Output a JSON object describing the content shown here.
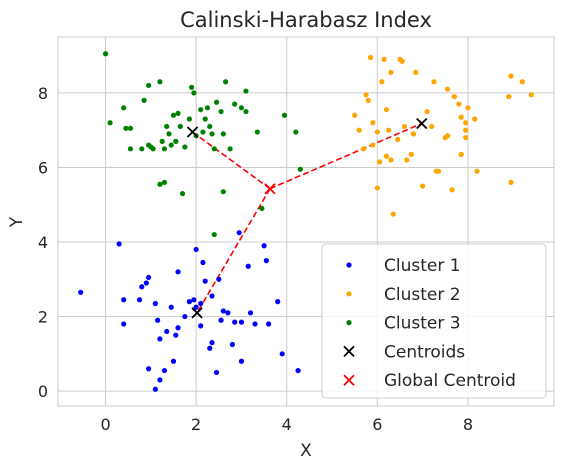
{
  "chart_data": {
    "type": "scatter",
    "title": "Calinski-Harabasz Index",
    "xlabel": "X",
    "ylabel": "Y",
    "xlim": [
      -1.05,
      9.9
    ],
    "ylim": [
      -0.4,
      9.5
    ],
    "xticks": [
      0,
      2,
      4,
      6,
      8
    ],
    "yticks": [
      0,
      2,
      4,
      6,
      8
    ],
    "grid": true,
    "legend_position": "lower-right",
    "series": [
      {
        "name": "Cluster 1",
        "color": "#0000ff",
        "marker": "dot",
        "points": [
          [
            -0.55,
            2.65
          ],
          [
            0.3,
            3.95
          ],
          [
            0.4,
            2.45
          ],
          [
            0.4,
            1.8
          ],
          [
            0.75,
            2.45
          ],
          [
            0.8,
            2.8
          ],
          [
            0.9,
            2.9
          ],
          [
            0.95,
            3.05
          ],
          [
            0.95,
            0.6
          ],
          [
            1.1,
            2.35
          ],
          [
            1.15,
            1.9
          ],
          [
            1.1,
            0.05
          ],
          [
            1.2,
            1.4
          ],
          [
            1.2,
            0.3
          ],
          [
            1.35,
            1.6
          ],
          [
            1.45,
            2.25
          ],
          [
            1.5,
            0.8
          ],
          [
            1.55,
            1.5
          ],
          [
            1.6,
            1.7
          ],
          [
            1.6,
            3.2
          ],
          [
            1.75,
            2.0
          ],
          [
            1.85,
            2.4
          ],
          [
            1.95,
            2.45
          ],
          [
            2.0,
            2.25
          ],
          [
            2.0,
            3.8
          ],
          [
            2.1,
            2.35
          ],
          [
            2.1,
            1.75
          ],
          [
            2.15,
            3.45
          ],
          [
            2.2,
            2.95
          ],
          [
            2.3,
            1.15
          ],
          [
            2.35,
            1.3
          ],
          [
            2.35,
            2.55
          ],
          [
            2.45,
            0.5
          ],
          [
            2.5,
            3.0
          ],
          [
            2.55,
            1.9
          ],
          [
            2.7,
            2.1
          ],
          [
            2.8,
            1.25
          ],
          [
            2.85,
            1.85
          ],
          [
            3.0,
            0.8
          ],
          [
            3.0,
            1.85
          ],
          [
            3.15,
            3.35
          ],
          [
            3.3,
            1.8
          ],
          [
            3.5,
            3.9
          ],
          [
            3.55,
            3.5
          ],
          [
            3.6,
            1.8
          ],
          [
            3.8,
            2.4
          ],
          [
            3.9,
            1.0
          ],
          [
            4.25,
            0.55
          ],
          [
            2.95,
            4.25
          ],
          [
            3.2,
            2.1
          ],
          [
            2.6,
            2.15
          ],
          [
            1.3,
            0.55
          ]
        ]
      },
      {
        "name": "Cluster 2",
        "color": "#ffa500",
        "marker": "dot",
        "points": [
          [
            5.5,
            7.4
          ],
          [
            5.6,
            7.0
          ],
          [
            5.7,
            6.5
          ],
          [
            5.75,
            7.95
          ],
          [
            5.8,
            7.8
          ],
          [
            5.85,
            8.95
          ],
          [
            5.9,
            7.2
          ],
          [
            5.9,
            6.6
          ],
          [
            6.0,
            5.45
          ],
          [
            6.0,
            6.95
          ],
          [
            6.1,
            8.3
          ],
          [
            6.15,
            8.9
          ],
          [
            6.2,
            7.55
          ],
          [
            6.2,
            6.3
          ],
          [
            6.25,
            7.0
          ],
          [
            6.3,
            6.2
          ],
          [
            6.3,
            8.55
          ],
          [
            6.35,
            4.75
          ],
          [
            6.45,
            6.75
          ],
          [
            6.5,
            8.9
          ],
          [
            6.55,
            8.85
          ],
          [
            6.6,
            7.1
          ],
          [
            6.65,
            6.2
          ],
          [
            6.75,
            6.35
          ],
          [
            6.8,
            6.9
          ],
          [
            6.85,
            8.55
          ],
          [
            7.0,
            5.5
          ],
          [
            7.1,
            7.5
          ],
          [
            7.2,
            7.1
          ],
          [
            7.25,
            8.3
          ],
          [
            7.3,
            5.9
          ],
          [
            7.35,
            5.9
          ],
          [
            7.5,
            6.8
          ],
          [
            7.55,
            6.85
          ],
          [
            7.65,
            5.4
          ],
          [
            7.7,
            7.9
          ],
          [
            7.8,
            7.7
          ],
          [
            7.85,
            6.35
          ],
          [
            7.85,
            7.35
          ],
          [
            7.95,
            7.2
          ],
          [
            7.95,
            7.0
          ],
          [
            7.95,
            6.8
          ],
          [
            8.15,
            7.3
          ],
          [
            8.2,
            5.9
          ],
          [
            8.9,
            7.9
          ],
          [
            8.95,
            8.45
          ],
          [
            8.95,
            5.6
          ],
          [
            9.2,
            8.3
          ],
          [
            9.4,
            7.95
          ],
          [
            7.55,
            8.1
          ],
          [
            6.05,
            6.15
          ],
          [
            8.0,
            7.6
          ]
        ]
      },
      {
        "name": "Cluster 3",
        "color": "#008000",
        "marker": "dot",
        "points": [
          [
            0.0,
            9.05
          ],
          [
            0.1,
            7.2
          ],
          [
            0.4,
            7.6
          ],
          [
            0.45,
            7.05
          ],
          [
            0.55,
            6.5
          ],
          [
            0.8,
            6.5
          ],
          [
            0.85,
            7.8
          ],
          [
            0.95,
            8.2
          ],
          [
            0.95,
            6.6
          ],
          [
            1.0,
            6.55
          ],
          [
            1.05,
            6.5
          ],
          [
            1.2,
            5.55
          ],
          [
            1.2,
            8.3
          ],
          [
            1.25,
            6.7
          ],
          [
            1.3,
            5.6
          ],
          [
            1.3,
            6.5
          ],
          [
            1.35,
            7.1
          ],
          [
            1.4,
            6.9
          ],
          [
            1.45,
            6.6
          ],
          [
            1.5,
            7.4
          ],
          [
            1.55,
            6.7
          ],
          [
            1.6,
            7.45
          ],
          [
            1.65,
            7.1
          ],
          [
            1.7,
            5.3
          ],
          [
            1.75,
            6.55
          ],
          [
            1.85,
            7.3
          ],
          [
            1.9,
            8.15
          ],
          [
            1.95,
            8.0
          ],
          [
            2.0,
            6.85
          ],
          [
            2.1,
            7.55
          ],
          [
            2.15,
            6.95
          ],
          [
            2.2,
            7.3
          ],
          [
            2.25,
            7.6
          ],
          [
            2.3,
            7.1
          ],
          [
            2.35,
            6.9
          ],
          [
            2.4,
            6.5
          ],
          [
            2.45,
            7.75
          ],
          [
            2.55,
            7.5
          ],
          [
            2.6,
            6.9
          ],
          [
            2.6,
            5.35
          ],
          [
            2.65,
            8.3
          ],
          [
            2.75,
            6.5
          ],
          [
            2.85,
            7.7
          ],
          [
            3.0,
            7.6
          ],
          [
            3.1,
            8.05
          ],
          [
            3.1,
            7.5
          ],
          [
            3.35,
            6.95
          ],
          [
            3.45,
            4.9
          ],
          [
            3.95,
            7.4
          ],
          [
            4.2,
            6.95
          ],
          [
            4.3,
            5.95
          ],
          [
            2.4,
            4.2
          ],
          [
            0.55,
            7.05
          ]
        ]
      }
    ],
    "centroids": {
      "name": "Centroids",
      "color": "#000000",
      "marker": "x",
      "points": [
        [
          2.02,
          2.1
        ],
        [
          6.98,
          7.18
        ],
        [
          1.92,
          6.95
        ]
      ]
    },
    "global_centroid": {
      "name": "Global Centroid",
      "color": "#ff0000",
      "marker": "x",
      "points": [
        [
          3.63,
          5.43
        ]
      ]
    }
  }
}
